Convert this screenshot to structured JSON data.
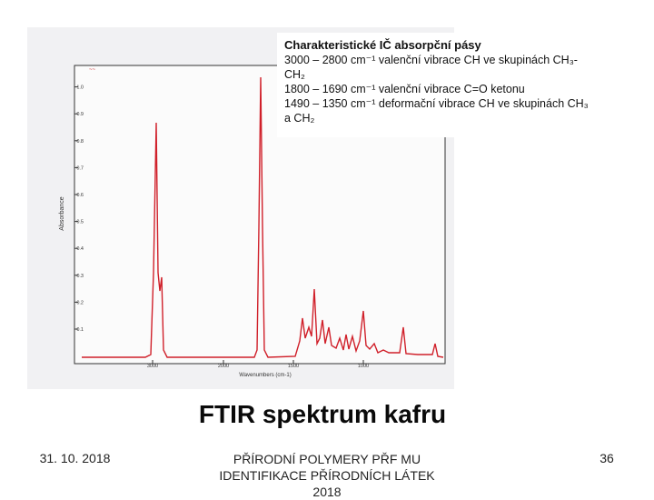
{
  "spectrum": {
    "y_label": "Absorbance",
    "x_label": "Wavenumbers (cm-1)",
    "y_ticks": [
      "0.1",
      "0.2",
      "0.3",
      "0.4",
      "0.5",
      "0.6",
      "0.7",
      "0.8",
      "0.9",
      "1.0"
    ],
    "x_ticks": [
      "3000",
      "2000",
      "1500",
      "1000"
    ]
  },
  "info_box": {
    "title": "Charakteristické IČ absorpční pásy",
    "lines": [
      "3000 – 2800 cm⁻¹  valenční vibrace CH ve skupinách CH₃-",
      "CH₂",
      "1800 – 1690 cm⁻¹  valenční vibrace C=O ketonu",
      "1490 – 1350 cm⁻¹  deformační vibrace CH ve skupinách CH₃",
      "a CH₂"
    ]
  },
  "slide": {
    "title": "FTIR spektrum kafru",
    "date": "31. 10. 2018",
    "footer": "PŘÍRODNÍ POLYMERY PŘF MU IDENTIFIKACE PŘÍRODNÍCH LÁTEK 2018",
    "page_number": "36"
  }
}
